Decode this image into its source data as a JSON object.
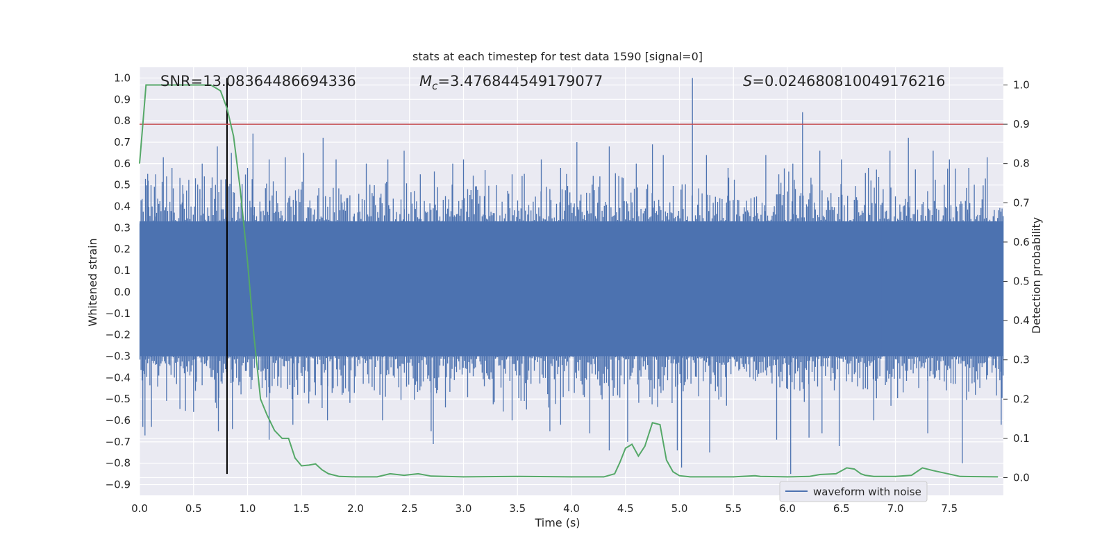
{
  "chart_data": {
    "type": "line",
    "title": "stats at each timestep for test data 1590 [signal=0]",
    "xlabel": "Time (s)",
    "ylabel_left": "Whitened strain",
    "ylabel_right": "Detection probability",
    "xlim": [
      0.0,
      8.0
    ],
    "ylim_left": [
      -0.95,
      1.05
    ],
    "ylim_right": [
      -0.045,
      1.045
    ],
    "x_ticks": [
      "0.0",
      "0.5",
      "1.0",
      "1.5",
      "2.0",
      "2.5",
      "3.0",
      "3.5",
      "4.0",
      "4.5",
      "5.0",
      "5.5",
      "6.0",
      "6.5",
      "7.0",
      "7.5"
    ],
    "y_left_ticks": [
      "1.0",
      "0.9",
      "0.8",
      "0.7",
      "0.6",
      "0.5",
      "0.4",
      "0.3",
      "0.2",
      "0.1",
      "0.0",
      "−0.1",
      "−0.2",
      "−0.3",
      "−0.4",
      "−0.5",
      "−0.6",
      "−0.7",
      "−0.8",
      "−0.9"
    ],
    "y_right_ticks": [
      "1.0",
      "0.9",
      "0.8",
      "0.7",
      "0.6",
      "0.5",
      "0.4",
      "0.3",
      "0.2",
      "0.1",
      "0.0"
    ],
    "grid": true,
    "legend": {
      "entries": [
        "waveform with noise"
      ],
      "placement": "lower-right"
    },
    "annotations": {
      "snr": "SNR=13.08364486694336",
      "mc": "=3.476844549179077",
      "mc_symbol": "M",
      "mc_sub": "c",
      "s": "=0.024680810049176216",
      "s_symbol": "S"
    },
    "colors": {
      "waveform": "#4c72b0",
      "probability": "#55a868",
      "threshold": "#c44e52",
      "marker": "#000000",
      "background": "#eaeaf2"
    },
    "threshold_line": {
      "axis": "right",
      "value": 0.9
    },
    "marker_line": {
      "x": 0.81,
      "y_range": [
        -0.85,
        1.0
      ]
    },
    "waveform": {
      "name": "waveform with noise",
      "x_range": [
        0.0,
        8.0
      ],
      "core_band": [
        -0.3,
        0.33
      ],
      "spikes_up": [
        [
          0.08,
          0.52
        ],
        [
          0.15,
          0.55
        ],
        [
          0.22,
          0.63
        ],
        [
          0.3,
          0.58
        ],
        [
          0.4,
          0.5
        ],
        [
          0.58,
          0.6
        ],
        [
          0.72,
          0.68
        ],
        [
          0.85,
          0.65
        ],
        [
          1.0,
          0.58
        ],
        [
          1.05,
          0.74
        ],
        [
          1.2,
          0.62
        ],
        [
          1.35,
          0.63
        ],
        [
          1.52,
          0.65
        ],
        [
          1.7,
          0.72
        ],
        [
          1.82,
          0.62
        ],
        [
          2.1,
          0.6
        ],
        [
          2.3,
          0.62
        ],
        [
          2.45,
          0.66
        ],
        [
          2.6,
          0.55
        ],
        [
          2.9,
          0.6
        ],
        [
          3.0,
          0.62
        ],
        [
          3.2,
          0.57
        ],
        [
          3.45,
          0.55
        ],
        [
          3.72,
          0.62
        ],
        [
          3.9,
          0.58
        ],
        [
          4.05,
          0.7
        ],
        [
          4.35,
          0.68
        ],
        [
          4.6,
          0.6
        ],
        [
          4.75,
          0.69
        ],
        [
          4.85,
          0.64
        ],
        [
          5.12,
          1.0
        ],
        [
          5.25,
          0.64
        ],
        [
          5.45,
          0.58
        ],
        [
          5.8,
          0.64
        ],
        [
          5.92,
          0.55
        ],
        [
          6.05,
          0.6
        ],
        [
          6.14,
          0.84
        ],
        [
          6.3,
          0.66
        ],
        [
          6.5,
          0.62
        ],
        [
          6.75,
          0.58
        ],
        [
          6.95,
          0.66
        ],
        [
          7.12,
          0.72
        ],
        [
          7.35,
          0.66
        ],
        [
          7.5,
          0.62
        ],
        [
          7.68,
          0.58
        ],
        [
          7.85,
          0.63
        ]
      ],
      "spikes_down": [
        [
          0.03,
          -0.63
        ],
        [
          0.05,
          -0.67
        ],
        [
          0.11,
          -0.63
        ],
        [
          0.5,
          -0.56
        ],
        [
          0.73,
          -0.65
        ],
        [
          0.86,
          -0.64
        ],
        [
          1.2,
          -0.69
        ],
        [
          1.42,
          -0.62
        ],
        [
          1.74,
          -0.6
        ],
        [
          2.25,
          -0.6
        ],
        [
          2.7,
          -0.65
        ],
        [
          2.72,
          -0.71
        ],
        [
          3.45,
          -0.6
        ],
        [
          3.8,
          -0.65
        ],
        [
          3.9,
          -0.62
        ],
        [
          4.17,
          -0.66
        ],
        [
          4.35,
          -0.74
        ],
        [
          4.52,
          -0.7
        ],
        [
          4.98,
          -0.74
        ],
        [
          5.02,
          -0.82
        ],
        [
          5.28,
          -0.75
        ],
        [
          5.9,
          -0.69
        ],
        [
          6.03,
          -0.85
        ],
        [
          6.2,
          -0.68
        ],
        [
          6.32,
          -0.66
        ],
        [
          6.48,
          -0.72
        ],
        [
          6.8,
          -0.6
        ],
        [
          7.3,
          -0.66
        ],
        [
          7.62,
          -0.8
        ],
        [
          7.98,
          -0.62
        ]
      ]
    },
    "detection_probability": {
      "name": "detection probability",
      "x": [
        0.0,
        0.03,
        0.06,
        0.1,
        0.2,
        0.3,
        0.4,
        0.5,
        0.6,
        0.66,
        0.72,
        0.75,
        0.81,
        0.87,
        0.93,
        1.0,
        1.06,
        1.12,
        1.18,
        1.25,
        1.32,
        1.38,
        1.44,
        1.5,
        1.57,
        1.63,
        1.69,
        1.75,
        1.85,
        2.0,
        2.2,
        2.32,
        2.45,
        2.58,
        2.7,
        3.0,
        3.5,
        4.0,
        4.3,
        4.4,
        4.45,
        4.5,
        4.56,
        4.62,
        4.68,
        4.75,
        4.82,
        4.88,
        4.94,
        5.0,
        5.1,
        5.5,
        5.7,
        5.75,
        6.0,
        6.2,
        6.3,
        6.45,
        6.55,
        6.62,
        6.68,
        6.72,
        6.8,
        7.0,
        7.15,
        7.25,
        7.35,
        7.45,
        7.6,
        7.95
      ],
      "values": [
        0.8,
        0.9,
        1.0,
        1.0,
        1.0,
        1.0,
        1.0,
        1.0,
        1.0,
        1.0,
        0.99,
        0.985,
        0.94,
        0.87,
        0.74,
        0.55,
        0.36,
        0.2,
        0.16,
        0.12,
        0.1,
        0.1,
        0.05,
        0.03,
        0.032,
        0.035,
        0.02,
        0.01,
        0.003,
        0.002,
        0.002,
        0.01,
        0.006,
        0.01,
        0.004,
        0.002,
        0.003,
        0.002,
        0.002,
        0.01,
        0.04,
        0.075,
        0.085,
        0.055,
        0.08,
        0.14,
        0.135,
        0.045,
        0.015,
        0.005,
        0.002,
        0.002,
        0.005,
        0.003,
        0.002,
        0.003,
        0.008,
        0.01,
        0.025,
        0.022,
        0.01,
        0.006,
        0.003,
        0.003,
        0.006,
        0.025,
        0.018,
        0.012,
        0.003,
        0.002
      ]
    }
  }
}
